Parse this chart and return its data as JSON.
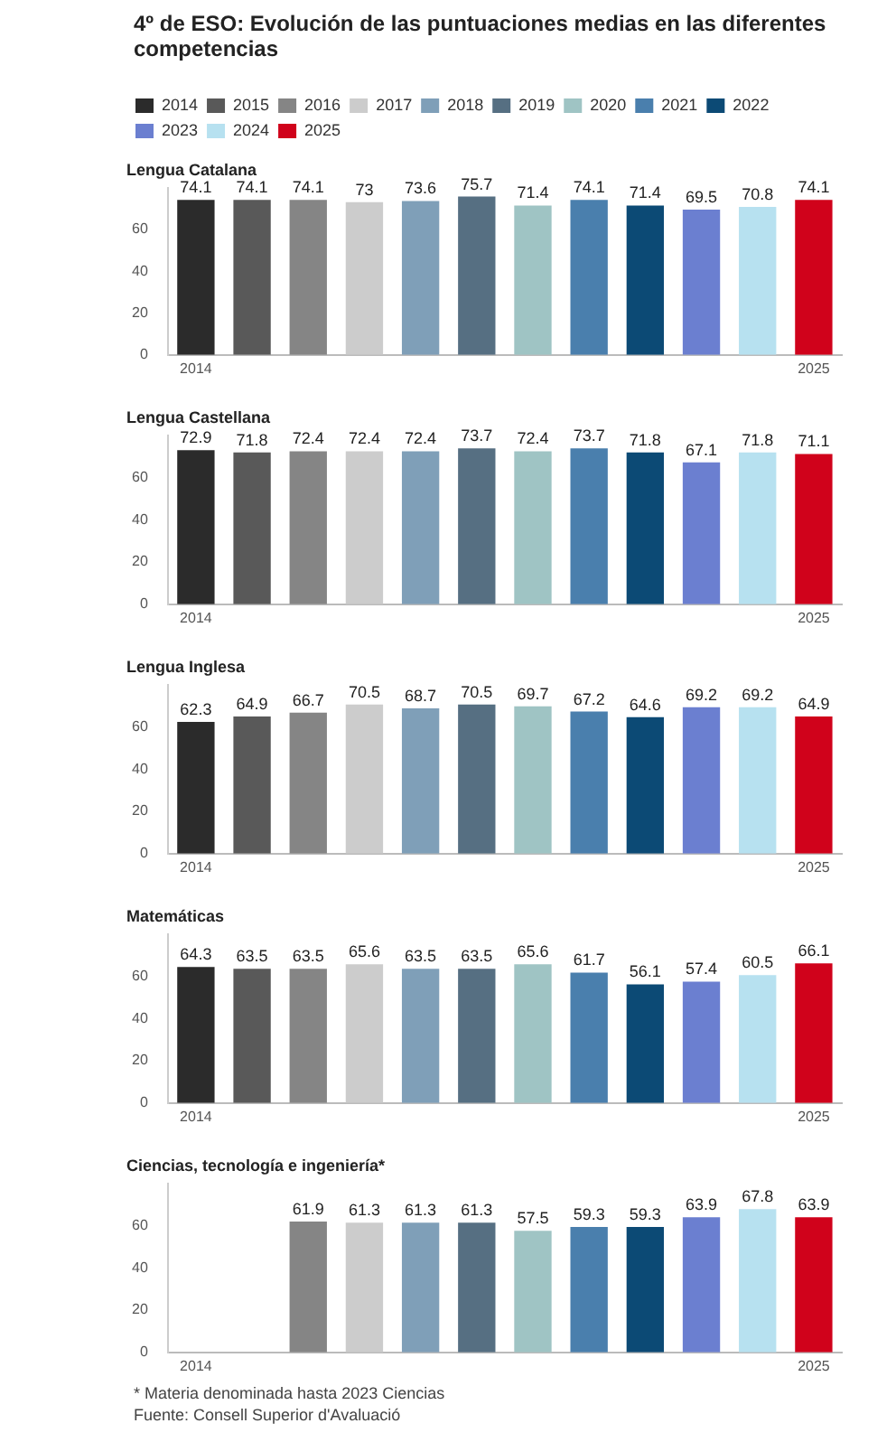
{
  "chart_data": [
    {
      "type": "bar",
      "title": "4º de ESO: Evolución de las puntuaciones medias en las diferentes competencias",
      "subtitle": "Lengua Catalana",
      "categories": [
        "2014",
        null,
        null,
        null,
        null,
        null,
        null,
        null,
        null,
        null,
        null,
        "2025"
      ],
      "legend": "top",
      "data_labels": true,
      "ylim": [
        0,
        80
      ],
      "yticks": [
        0,
        20,
        40,
        60
      ],
      "grid": false,
      "series": [
        {
          "name": "2014",
          "color": "#2b2b2b",
          "values": [
            74.1,
            null,
            null,
            null,
            null,
            null,
            null,
            null,
            null,
            null,
            null,
            null
          ]
        },
        {
          "name": "2015",
          "color": "#595959",
          "values": [
            null,
            74.1,
            null,
            null,
            null,
            null,
            null,
            null,
            null,
            null,
            null,
            null
          ]
        },
        {
          "name": "2016",
          "color": "#858585",
          "values": [
            null,
            null,
            74.1,
            null,
            null,
            null,
            null,
            null,
            null,
            null,
            null,
            null
          ]
        },
        {
          "name": "2017",
          "color": "#cccccc",
          "values": [
            null,
            null,
            null,
            73.0,
            null,
            null,
            null,
            null,
            null,
            null,
            null,
            null
          ]
        },
        {
          "name": "2018",
          "color": "#7f9fb8",
          "values": [
            null,
            null,
            null,
            null,
            73.6,
            null,
            null,
            null,
            null,
            null,
            null,
            null
          ]
        },
        {
          "name": "2019",
          "color": "#566f82",
          "values": [
            null,
            null,
            null,
            null,
            null,
            75.7,
            null,
            null,
            null,
            null,
            null,
            null
          ]
        },
        {
          "name": "2020",
          "color": "#9fc4c4",
          "values": [
            null,
            null,
            null,
            null,
            null,
            null,
            71.4,
            null,
            null,
            null,
            null,
            null
          ]
        },
        {
          "name": "2021",
          "color": "#4a7fad",
          "values": [
            null,
            null,
            null,
            null,
            null,
            null,
            null,
            74.1,
            null,
            null,
            null,
            null
          ]
        },
        {
          "name": "2022",
          "color": "#0c4a75",
          "values": [
            null,
            null,
            null,
            null,
            null,
            null,
            null,
            null,
            71.4,
            null,
            null,
            null
          ]
        },
        {
          "name": "2023",
          "color": "#6b7fd0",
          "values": [
            null,
            null,
            null,
            null,
            null,
            null,
            null,
            null,
            null,
            69.5,
            null,
            null
          ]
        },
        {
          "name": "2024",
          "color": "#b7e1f0",
          "values": [
            null,
            null,
            null,
            null,
            null,
            null,
            null,
            null,
            null,
            null,
            70.8,
            null
          ]
        },
        {
          "name": "2025",
          "color": "#d0021b",
          "values": [
            null,
            null,
            null,
            null,
            null,
            null,
            null,
            null,
            null,
            null,
            null,
            74.1
          ]
        }
      ]
    },
    {
      "type": "bar",
      "title": "Lengua Castellana",
      "categories": [
        "2014",
        null,
        null,
        null,
        null,
        null,
        null,
        null,
        null,
        null,
        null,
        "2025"
      ],
      "data_labels": true,
      "ylim": [
        0,
        80
      ],
      "yticks": [
        0,
        20,
        40,
        60
      ],
      "grid": false,
      "series": [
        {
          "color": "#2b2b2b",
          "values": [
            72.9,
            null,
            null,
            null,
            null,
            null,
            null,
            null,
            null,
            null,
            null,
            null
          ]
        },
        {
          "color": "#595959",
          "values": [
            null,
            71.8,
            null,
            null,
            null,
            null,
            null,
            null,
            null,
            null,
            null,
            null
          ]
        },
        {
          "color": "#858585",
          "values": [
            null,
            null,
            72.4,
            null,
            null,
            null,
            null,
            null,
            null,
            null,
            null,
            null
          ]
        },
        {
          "color": "#cccccc",
          "values": [
            null,
            null,
            null,
            72.4,
            null,
            null,
            null,
            null,
            null,
            null,
            null,
            null
          ]
        },
        {
          "color": "#7f9fb8",
          "values": [
            null,
            null,
            null,
            null,
            72.4,
            null,
            null,
            null,
            null,
            null,
            null,
            null
          ]
        },
        {
          "color": "#566f82",
          "values": [
            null,
            null,
            null,
            null,
            null,
            73.7,
            null,
            null,
            null,
            null,
            null,
            null
          ]
        },
        {
          "color": "#9fc4c4",
          "values": [
            null,
            null,
            null,
            null,
            null,
            null,
            72.4,
            null,
            null,
            null,
            null,
            null
          ]
        },
        {
          "color": "#4a7fad",
          "values": [
            null,
            null,
            null,
            null,
            null,
            null,
            null,
            73.7,
            null,
            null,
            null,
            null
          ]
        },
        {
          "color": "#0c4a75",
          "values": [
            null,
            null,
            null,
            null,
            null,
            null,
            null,
            null,
            71.8,
            null,
            null,
            null
          ]
        },
        {
          "color": "#6b7fd0",
          "values": [
            null,
            null,
            null,
            null,
            null,
            null,
            null,
            null,
            null,
            67.1,
            null,
            null
          ]
        },
        {
          "color": "#b7e1f0",
          "values": [
            null,
            null,
            null,
            null,
            null,
            null,
            null,
            null,
            null,
            null,
            71.8,
            null
          ]
        },
        {
          "color": "#d0021b",
          "values": [
            null,
            null,
            null,
            null,
            null,
            null,
            null,
            null,
            null,
            null,
            null,
            71.1
          ]
        }
      ]
    },
    {
      "type": "bar",
      "title": "Lengua Inglesa",
      "categories": [
        "2014",
        null,
        null,
        null,
        null,
        null,
        null,
        null,
        null,
        null,
        null,
        "2025"
      ],
      "data_labels": true,
      "ylim": [
        0,
        80
      ],
      "yticks": [
        0,
        20,
        40,
        60
      ],
      "grid": false,
      "series": [
        {
          "color": "#2b2b2b",
          "values": [
            62.3,
            null,
            null,
            null,
            null,
            null,
            null,
            null,
            null,
            null,
            null,
            null
          ]
        },
        {
          "color": "#595959",
          "values": [
            null,
            64.9,
            null,
            null,
            null,
            null,
            null,
            null,
            null,
            null,
            null,
            null
          ]
        },
        {
          "color": "#858585",
          "values": [
            null,
            null,
            66.7,
            null,
            null,
            null,
            null,
            null,
            null,
            null,
            null,
            null
          ]
        },
        {
          "color": "#cccccc",
          "values": [
            null,
            null,
            null,
            70.5,
            null,
            null,
            null,
            null,
            null,
            null,
            null,
            null
          ]
        },
        {
          "color": "#7f9fb8",
          "values": [
            null,
            null,
            null,
            null,
            68.7,
            null,
            null,
            null,
            null,
            null,
            null,
            null
          ]
        },
        {
          "color": "#566f82",
          "values": [
            null,
            null,
            null,
            null,
            null,
            70.5,
            null,
            null,
            null,
            null,
            null,
            null
          ]
        },
        {
          "color": "#9fc4c4",
          "values": [
            null,
            null,
            null,
            null,
            null,
            null,
            69.7,
            null,
            null,
            null,
            null,
            null
          ]
        },
        {
          "color": "#4a7fad",
          "values": [
            null,
            null,
            null,
            null,
            null,
            null,
            null,
            67.2,
            null,
            null,
            null,
            null
          ]
        },
        {
          "color": "#0c4a75",
          "values": [
            null,
            null,
            null,
            null,
            null,
            null,
            null,
            null,
            64.6,
            null,
            null,
            null
          ]
        },
        {
          "color": "#6b7fd0",
          "values": [
            null,
            null,
            null,
            null,
            null,
            null,
            null,
            null,
            null,
            69.2,
            null,
            null
          ]
        },
        {
          "color": "#b7e1f0",
          "values": [
            null,
            null,
            null,
            null,
            null,
            null,
            null,
            null,
            null,
            null,
            69.2,
            null
          ]
        },
        {
          "color": "#d0021b",
          "values": [
            null,
            null,
            null,
            null,
            null,
            null,
            null,
            null,
            null,
            null,
            null,
            64.9
          ]
        }
      ]
    },
    {
      "type": "bar",
      "title": "Matemáticas",
      "categories": [
        "2014",
        null,
        null,
        null,
        null,
        null,
        null,
        null,
        null,
        null,
        null,
        "2025"
      ],
      "data_labels": true,
      "ylim": [
        0,
        80
      ],
      "yticks": [
        0,
        20,
        40,
        60
      ],
      "grid": false,
      "series": [
        {
          "color": "#2b2b2b",
          "values": [
            64.3,
            null,
            null,
            null,
            null,
            null,
            null,
            null,
            null,
            null,
            null,
            null
          ]
        },
        {
          "color": "#595959",
          "values": [
            null,
            63.5,
            null,
            null,
            null,
            null,
            null,
            null,
            null,
            null,
            null,
            null
          ]
        },
        {
          "color": "#858585",
          "values": [
            null,
            null,
            63.5,
            null,
            null,
            null,
            null,
            null,
            null,
            null,
            null,
            null
          ]
        },
        {
          "color": "#cccccc",
          "values": [
            null,
            null,
            null,
            65.6,
            null,
            null,
            null,
            null,
            null,
            null,
            null,
            null
          ]
        },
        {
          "color": "#7f9fb8",
          "values": [
            null,
            null,
            null,
            null,
            63.5,
            null,
            null,
            null,
            null,
            null,
            null,
            null
          ]
        },
        {
          "color": "#566f82",
          "values": [
            null,
            null,
            null,
            null,
            null,
            63.5,
            null,
            null,
            null,
            null,
            null,
            null
          ]
        },
        {
          "color": "#9fc4c4",
          "values": [
            null,
            null,
            null,
            null,
            null,
            null,
            65.6,
            null,
            null,
            null,
            null,
            null
          ]
        },
        {
          "color": "#4a7fad",
          "values": [
            null,
            null,
            null,
            null,
            null,
            null,
            null,
            61.7,
            null,
            null,
            null,
            null
          ]
        },
        {
          "color": "#0c4a75",
          "values": [
            null,
            null,
            null,
            null,
            null,
            null,
            null,
            null,
            56.1,
            null,
            null,
            null
          ]
        },
        {
          "color": "#6b7fd0",
          "values": [
            null,
            null,
            null,
            null,
            null,
            null,
            null,
            null,
            null,
            57.4,
            null,
            null
          ]
        },
        {
          "color": "#b7e1f0",
          "values": [
            null,
            null,
            null,
            null,
            null,
            null,
            null,
            null,
            null,
            null,
            60.5,
            null
          ]
        },
        {
          "color": "#d0021b",
          "values": [
            null,
            null,
            null,
            null,
            null,
            null,
            null,
            null,
            null,
            null,
            null,
            66.1
          ]
        }
      ]
    },
    {
      "type": "bar",
      "title": "Ciencias, tecnología e ingeniería*",
      "categories": [
        "2014",
        null,
        null,
        null,
        null,
        null,
        null,
        null,
        null,
        null,
        null,
        "2025"
      ],
      "data_labels": true,
      "ylim": [
        0,
        80
      ],
      "yticks": [
        0,
        20,
        40,
        60
      ],
      "grid": false,
      "annotations": [
        "* Materia denominada hasta 2023 Ciencias",
        "Fuente: Consell Superior d'Avaluació"
      ],
      "series": [
        {
          "color": "#858585",
          "values": [
            null,
            null,
            61.9,
            null,
            null,
            null,
            null,
            null,
            null,
            null,
            null,
            null
          ]
        },
        {
          "color": "#cccccc",
          "values": [
            null,
            null,
            null,
            61.3,
            null,
            null,
            null,
            null,
            null,
            null,
            null,
            null
          ]
        },
        {
          "color": "#7f9fb8",
          "values": [
            null,
            null,
            null,
            null,
            61.3,
            null,
            null,
            null,
            null,
            null,
            null,
            null
          ]
        },
        {
          "color": "#566f82",
          "values": [
            null,
            null,
            null,
            null,
            null,
            61.3,
            null,
            null,
            null,
            null,
            null,
            null
          ]
        },
        {
          "color": "#9fc4c4",
          "values": [
            null,
            null,
            null,
            null,
            null,
            null,
            57.5,
            null,
            null,
            null,
            null,
            null
          ]
        },
        {
          "color": "#4a7fad",
          "values": [
            null,
            null,
            null,
            null,
            null,
            null,
            null,
            59.3,
            null,
            null,
            null,
            null
          ]
        },
        {
          "color": "#0c4a75",
          "values": [
            null,
            null,
            null,
            null,
            null,
            null,
            null,
            null,
            59.3,
            null,
            null,
            null
          ]
        },
        {
          "color": "#6b7fd0",
          "values": [
            null,
            null,
            null,
            null,
            null,
            null,
            null,
            null,
            null,
            63.9,
            null,
            null
          ]
        },
        {
          "color": "#b7e1f0",
          "values": [
            null,
            null,
            null,
            null,
            null,
            null,
            null,
            null,
            null,
            null,
            67.8,
            null
          ]
        },
        {
          "color": "#d0021b",
          "values": [
            null,
            null,
            null,
            null,
            null,
            null,
            null,
            null,
            null,
            null,
            null,
            63.9
          ]
        }
      ]
    }
  ]
}
